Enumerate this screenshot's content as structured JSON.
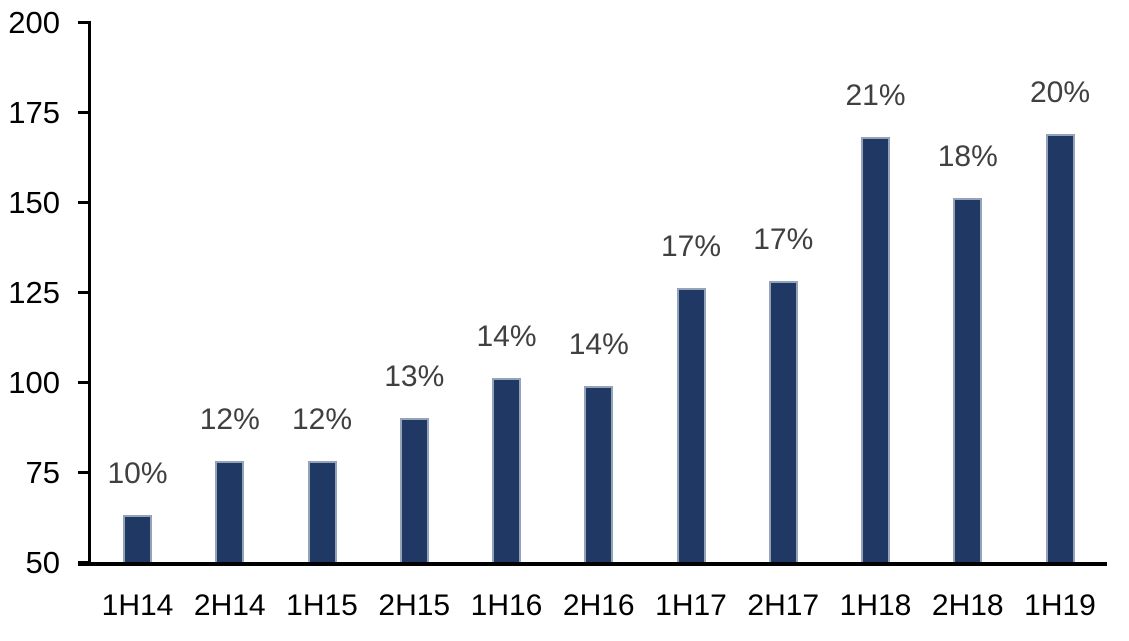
{
  "chart_data": {
    "type": "bar",
    "title": "",
    "xlabel": "",
    "ylabel": "",
    "categories": [
      "1H14",
      "2H14",
      "1H15",
      "2H15",
      "1H16",
      "2H16",
      "1H17",
      "2H17",
      "1H18",
      "2H18",
      "1H19"
    ],
    "values": [
      63,
      78,
      78,
      90,
      101,
      99,
      126,
      128,
      168,
      151,
      169
    ],
    "bar_labels": [
      "10%",
      "12%",
      "12%",
      "13%",
      "14%",
      "14%",
      "17%",
      "17%",
      "21%",
      "18%",
      "20%"
    ],
    "y_ticks": [
      50,
      75,
      100,
      125,
      150,
      175,
      200
    ],
    "ylim": [
      50,
      200
    ],
    "grid": false,
    "legend": false,
    "colors": {
      "bar_fill": "#1F3864",
      "bar_border": "#95A3B9",
      "value_label": "#404040",
      "axis": "#000000",
      "tick_label": "#000000",
      "background": "#FFFFFF"
    }
  }
}
